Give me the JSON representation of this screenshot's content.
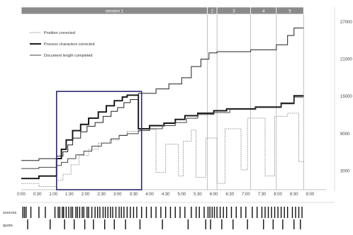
{
  "chart_data": {
    "type": "line",
    "title": "",
    "xlabel": "",
    "ylabel": "",
    "x_unit": "minutes",
    "xlim": [
      0,
      9.5
    ],
    "ylim": [
      0,
      28000
    ],
    "x_tick_labels": [
      {
        "x": 0.0,
        "label": "0:00"
      },
      {
        "x": 0.5,
        "label": "0:30"
      },
      {
        "x": 1.0,
        "label": "1:00"
      },
      {
        "x": 1.5,
        "label": "1:30"
      },
      {
        "x": 2.0,
        "label": "2:00"
      },
      {
        "x": 2.5,
        "label": "2:30"
      },
      {
        "x": 3.0,
        "label": "3:00"
      },
      {
        "x": 3.5,
        "label": "3:30"
      },
      {
        "x": 4.0,
        "label": "4:00"
      },
      {
        "x": 4.5,
        "label": "4:30"
      },
      {
        "x": 5.0,
        "label": "5:00"
      },
      {
        "x": 5.5,
        "label": "5:30"
      },
      {
        "x": 6.0,
        "label": "6:00"
      },
      {
        "x": 6.5,
        "label": "6:30"
      },
      {
        "x": 7.0,
        "label": "7:00"
      },
      {
        "x": 7.5,
        "label": "7:30"
      },
      {
        "x": 8.0,
        "label": "8:00"
      },
      {
        "x": 8.5,
        "label": "8:30"
      },
      {
        "x": 9.0,
        "label": "9:00"
      }
    ],
    "y_tick_labels": [
      {
        "y": 3000,
        "label": "3000"
      },
      {
        "y": 9000,
        "label": "9000"
      },
      {
        "y": 15000,
        "label": "15000"
      },
      {
        "y": 21000,
        "label": "21000"
      },
      {
        "y": 27000,
        "label": "27000"
      }
    ],
    "sessions": [
      {
        "label": "session 1",
        "start": 0.0,
        "end": 5.8
      },
      {
        "label": "2",
        "start": 5.8,
        "end": 6.1
      },
      {
        "label": "3",
        "start": 6.1,
        "end": 7.15
      },
      {
        "label": "4",
        "start": 7.15,
        "end": 7.95
      },
      {
        "label": "5",
        "start": 7.95,
        "end": 8.8
      }
    ],
    "legend_position": "top-left",
    "series": [
      {
        "name": "Position corrected",
        "style": "dotted",
        "points": [
          [
            0,
            1000
          ],
          [
            0.55,
            1000
          ],
          [
            0.55,
            500
          ],
          [
            1.1,
            500
          ],
          [
            1.1,
            1500
          ],
          [
            1.3,
            1500
          ],
          [
            1.3,
            2500
          ],
          [
            1.55,
            2500
          ],
          [
            1.55,
            4000
          ],
          [
            1.8,
            4000
          ],
          [
            1.8,
            5500
          ],
          [
            2.1,
            5500
          ],
          [
            2.1,
            6500
          ],
          [
            2.4,
            6500
          ],
          [
            2.4,
            7500
          ],
          [
            2.75,
            7500
          ],
          [
            2.75,
            8000
          ],
          [
            3.05,
            8000
          ],
          [
            3.05,
            8800
          ],
          [
            3.3,
            8800
          ],
          [
            3.3,
            9400
          ],
          [
            3.7,
            9400
          ],
          [
            3.7,
            9700
          ],
          [
            4.2,
            9700
          ],
          [
            4.2,
            2800
          ],
          [
            4.5,
            2800
          ],
          [
            4.5,
            7300
          ],
          [
            4.9,
            7300
          ],
          [
            4.9,
            2200
          ],
          [
            5.05,
            2200
          ],
          [
            5.05,
            7800
          ],
          [
            5.3,
            7800
          ],
          [
            5.3,
            9600
          ],
          [
            5.45,
            9600
          ],
          [
            5.45,
            2000
          ],
          [
            5.75,
            2000
          ],
          [
            5.75,
            8300
          ],
          [
            6.1,
            8300
          ],
          [
            6.1,
            1000
          ],
          [
            6.35,
            1000
          ],
          [
            6.35,
            9800
          ],
          [
            6.85,
            9800
          ],
          [
            6.85,
            3200
          ],
          [
            7.05,
            3200
          ],
          [
            7.05,
            11500
          ],
          [
            7.6,
            11500
          ],
          [
            7.6,
            2200
          ],
          [
            7.9,
            2200
          ],
          [
            7.9,
            11800
          ],
          [
            8.3,
            11800
          ],
          [
            8.3,
            12300
          ],
          [
            8.65,
            12300
          ],
          [
            8.65,
            4500
          ],
          [
            8.8,
            4500
          ]
        ]
      },
      {
        "name": "Process characters corrected",
        "style": "thick",
        "points": [
          [
            0,
            1800
          ],
          [
            0.55,
            1800
          ],
          [
            0.55,
            2200
          ],
          [
            1.1,
            2200
          ],
          [
            1.1,
            5000
          ],
          [
            1.25,
            5000
          ],
          [
            1.25,
            6500
          ],
          [
            1.4,
            6500
          ],
          [
            1.4,
            8000
          ],
          [
            1.6,
            8000
          ],
          [
            1.6,
            9500
          ],
          [
            1.85,
            9500
          ],
          [
            1.85,
            10500
          ],
          [
            2.1,
            10500
          ],
          [
            2.1,
            11500
          ],
          [
            2.4,
            11500
          ],
          [
            2.4,
            12500
          ],
          [
            2.65,
            12500
          ],
          [
            2.65,
            13500
          ],
          [
            2.9,
            13500
          ],
          [
            2.9,
            14300
          ],
          [
            3.15,
            14300
          ],
          [
            3.15,
            14900
          ],
          [
            3.3,
            14900
          ],
          [
            3.3,
            15200
          ],
          [
            3.65,
            15200
          ],
          [
            3.65,
            9800
          ],
          [
            4.0,
            9800
          ],
          [
            4.0,
            10300
          ],
          [
            4.45,
            10300
          ],
          [
            4.45,
            10700
          ],
          [
            4.8,
            10700
          ],
          [
            4.8,
            11300
          ],
          [
            5.1,
            11300
          ],
          [
            5.1,
            11900
          ],
          [
            5.5,
            11900
          ],
          [
            5.5,
            12300
          ],
          [
            6.0,
            12300
          ],
          [
            6.0,
            12700
          ],
          [
            6.4,
            12700
          ],
          [
            6.4,
            13000
          ],
          [
            7.3,
            13000
          ],
          [
            7.3,
            13300
          ],
          [
            8.1,
            13300
          ],
          [
            8.1,
            13900
          ],
          [
            8.5,
            13900
          ],
          [
            8.5,
            15100
          ],
          [
            8.8,
            15100
          ]
        ]
      },
      {
        "name": "Document length completed",
        "style": "solid",
        "points": [
          [
            0,
            3400
          ],
          [
            0.55,
            3400
          ],
          [
            0.55,
            3600
          ],
          [
            1.1,
            3600
          ],
          [
            1.1,
            3900
          ],
          [
            1.25,
            3900
          ],
          [
            1.25,
            4400
          ],
          [
            1.45,
            4400
          ],
          [
            1.45,
            5000
          ],
          [
            1.7,
            5000
          ],
          [
            1.7,
            5600
          ],
          [
            1.95,
            5600
          ],
          [
            1.95,
            6200
          ],
          [
            2.2,
            6200
          ],
          [
            2.2,
            7000
          ],
          [
            2.5,
            7000
          ],
          [
            2.5,
            7500
          ],
          [
            2.8,
            7500
          ],
          [
            2.8,
            8200
          ],
          [
            3.05,
            8200
          ],
          [
            3.05,
            8700
          ],
          [
            3.3,
            8700
          ],
          [
            3.3,
            9000
          ],
          [
            3.65,
            9000
          ],
          [
            3.65,
            9500
          ],
          [
            4.0,
            9500
          ],
          [
            4.0,
            9800
          ],
          [
            4.4,
            9800
          ],
          [
            4.4,
            10300
          ],
          [
            4.8,
            10300
          ],
          [
            4.8,
            10800
          ],
          [
            5.15,
            10800
          ],
          [
            5.15,
            11500
          ],
          [
            5.5,
            11500
          ],
          [
            5.5,
            12100
          ],
          [
            6.0,
            12100
          ],
          [
            6.0,
            12400
          ],
          [
            6.5,
            12400
          ],
          [
            6.5,
            12900
          ],
          [
            7.3,
            12900
          ],
          [
            7.3,
            13200
          ],
          [
            8.1,
            13200
          ],
          [
            8.1,
            13800
          ],
          [
            8.5,
            13800
          ],
          [
            8.5,
            14900
          ],
          [
            8.8,
            14900
          ]
        ]
      },
      {
        "name": "Document length",
        "style": "solid-unlabeled",
        "points": [
          [
            0,
            4700
          ],
          [
            0.55,
            4700
          ],
          [
            0.55,
            5000
          ],
          [
            1.1,
            5000
          ],
          [
            1.1,
            5400
          ],
          [
            1.3,
            5400
          ],
          [
            1.3,
            6100
          ],
          [
            1.45,
            6100
          ],
          [
            1.45,
            7200
          ],
          [
            1.6,
            7200
          ],
          [
            1.6,
            8300
          ],
          [
            1.85,
            8300
          ],
          [
            1.85,
            9300
          ],
          [
            2.05,
            9300
          ],
          [
            2.05,
            10200
          ],
          [
            2.3,
            10200
          ],
          [
            2.3,
            10800
          ],
          [
            2.55,
            10800
          ],
          [
            2.55,
            11800
          ],
          [
            2.8,
            11800
          ],
          [
            2.8,
            12600
          ],
          [
            3.0,
            12600
          ],
          [
            3.0,
            13200
          ],
          [
            3.2,
            13200
          ],
          [
            3.2,
            14000
          ],
          [
            3.4,
            14000
          ],
          [
            3.4,
            14500
          ],
          [
            3.65,
            14500
          ],
          [
            3.65,
            15500
          ],
          [
            4.2,
            15500
          ],
          [
            4.2,
            16200
          ],
          [
            4.6,
            16200
          ],
          [
            4.6,
            17000
          ],
          [
            5.0,
            17000
          ],
          [
            5.0,
            18000
          ],
          [
            5.3,
            18000
          ],
          [
            5.3,
            19800
          ],
          [
            5.6,
            19800
          ],
          [
            5.6,
            21000
          ],
          [
            5.85,
            21000
          ],
          [
            5.85,
            22000
          ],
          [
            6.1,
            22000
          ],
          [
            6.1,
            22200
          ],
          [
            7.15,
            22200
          ],
          [
            7.15,
            22500
          ],
          [
            7.95,
            22500
          ],
          [
            7.95,
            23300
          ],
          [
            8.3,
            23300
          ],
          [
            8.3,
            24800
          ],
          [
            8.5,
            24800
          ],
          [
            8.5,
            26000
          ],
          [
            8.8,
            26000
          ]
        ]
      }
    ],
    "event_rows": [
      {
        "label": "sources",
        "events": [
          0.05,
          0.1,
          0.15,
          0.3,
          0.55,
          0.75,
          1.05,
          1.15,
          1.2,
          1.28,
          1.32,
          1.4,
          1.48,
          1.55,
          1.6,
          1.7,
          1.75,
          1.82,
          1.9,
          1.95,
          2.05,
          2.1,
          2.2,
          2.3,
          2.38,
          2.45,
          2.55,
          2.62,
          2.7,
          2.78,
          2.85,
          2.95,
          3.05,
          3.12,
          3.2,
          3.3,
          3.4,
          3.5,
          3.6,
          3.75,
          3.9,
          4.05,
          4.2,
          4.35,
          4.5,
          4.65,
          4.8,
          4.95,
          5.1,
          5.3,
          5.45,
          5.55,
          5.7,
          5.82,
          5.88,
          5.95,
          6.02,
          6.1,
          6.2,
          6.3,
          6.4,
          6.55,
          6.7,
          6.85,
          7.0,
          7.2,
          7.35,
          7.5,
          7.6,
          7.7,
          7.8,
          7.9,
          8.0,
          8.1,
          8.2,
          8.3,
          8.45,
          8.55,
          8.65,
          8.75
        ]
      },
      {
        "label": "quote",
        "events": [
          0.2,
          0.9,
          1.35,
          1.65,
          1.98,
          2.25,
          2.6,
          2.9,
          3.25,
          3.7,
          4.4,
          5.2,
          5.75,
          5.9,
          6.25,
          6.6,
          7.05,
          7.55,
          7.85,
          8.15,
          8.5,
          8.7
        ]
      }
    ],
    "highlight_box": {
      "x": [
        1.1,
        3.75
      ],
      "y": [
        0,
        15800
      ],
      "color": "#2c2a70"
    },
    "grid": false
  }
}
